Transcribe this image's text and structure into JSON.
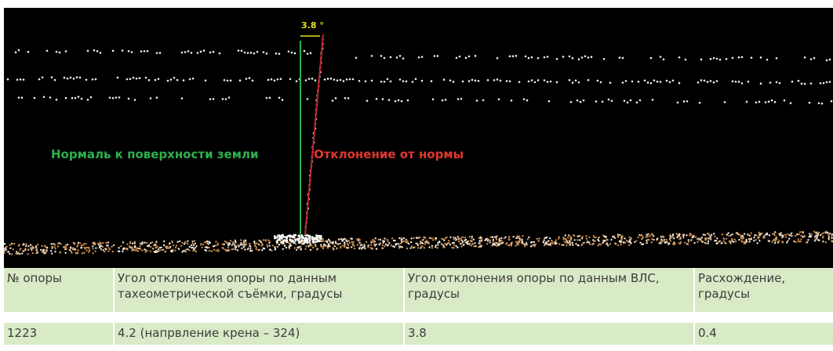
{
  "image": {
    "angle_label": "3.8 °",
    "normal_label": "Нормаль к поверхности земли",
    "deviation_label": "Отклонение от нормы"
  },
  "table": {
    "header": [
      "№ опоры",
      "Угол отклонения опоры по данным тахеометрической съёмки, градусы",
      "Угол отклонения опоры по данным ВЛС, градусы",
      "Расхождение, градусы"
    ],
    "rows": [
      [
        "1223",
        "4.2 (напрвление крена – 324)",
        "3.8",
        "0.4"
      ]
    ]
  }
}
